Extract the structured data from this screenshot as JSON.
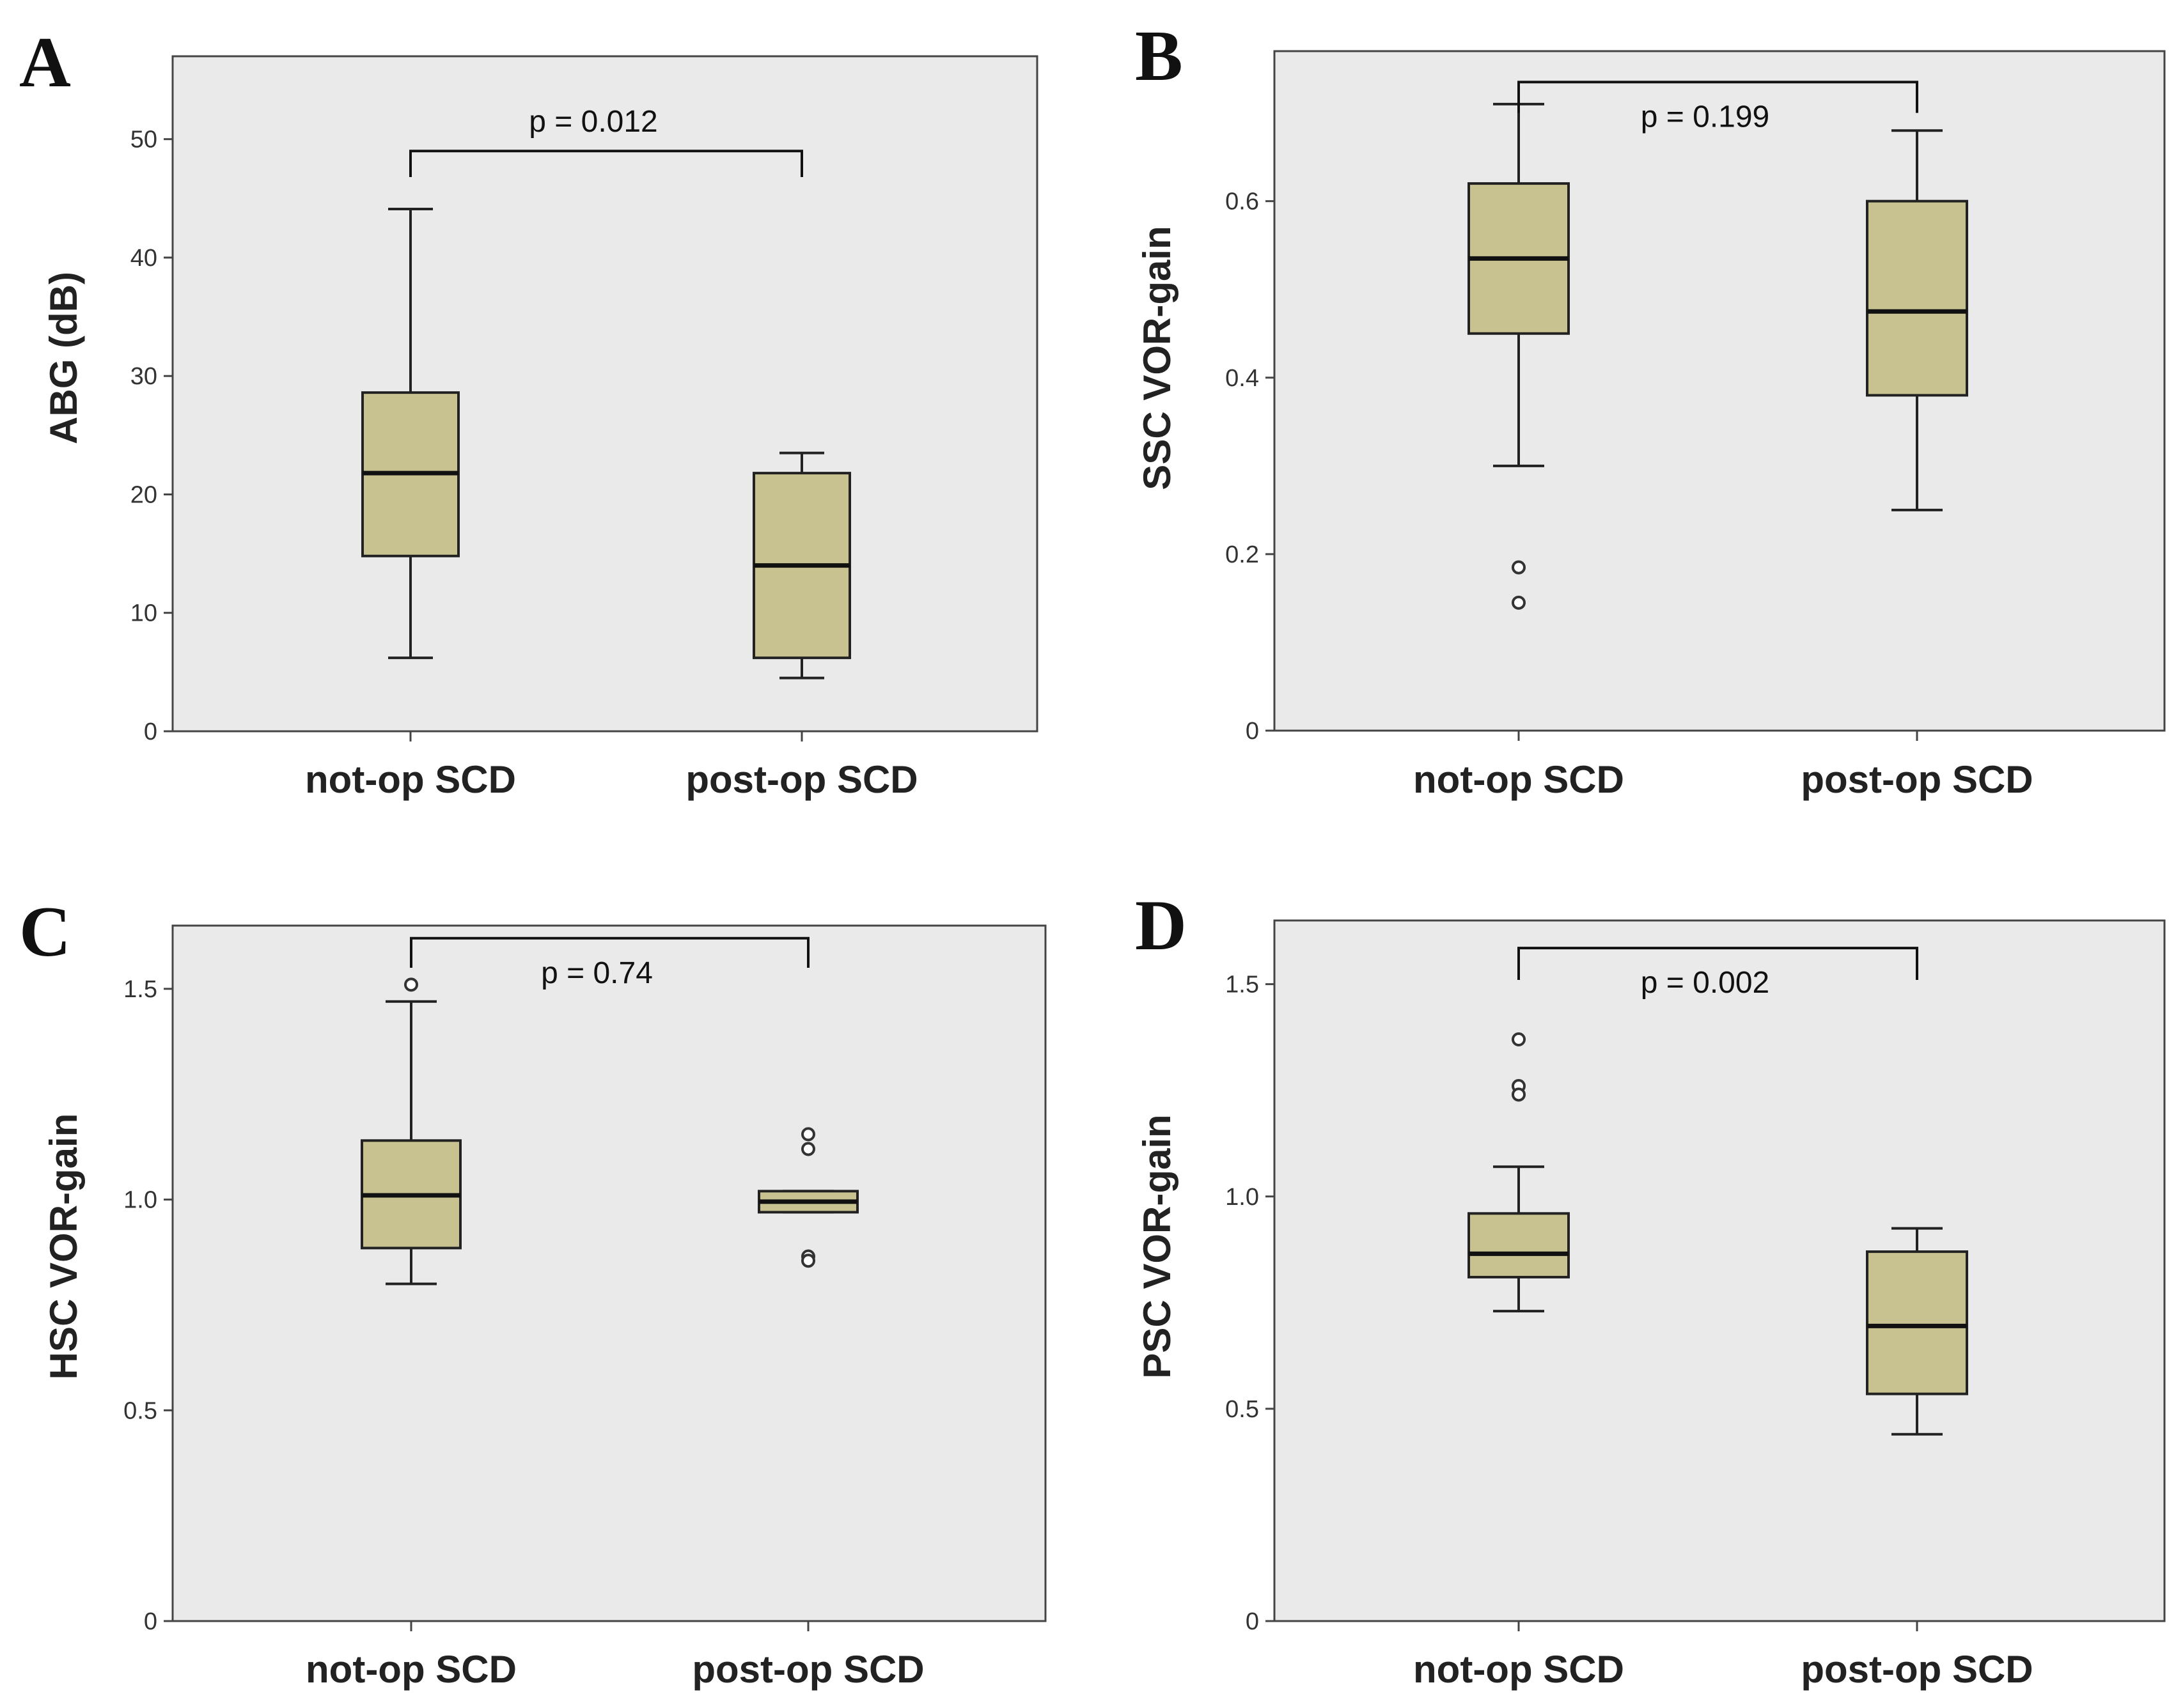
{
  "colors": {
    "plot_bg": "#eaeaea",
    "box_fill": "#c8c290",
    "frame": "#444444",
    "median": "#111111"
  },
  "chart_data": [
    {
      "type": "box",
      "panel": "A",
      "ylabel": "ABG (dB)",
      "ylim": [
        0,
        57
      ],
      "yticks": [
        0,
        10,
        20,
        30,
        40,
        50
      ],
      "categories": [
        "not-op SCD",
        "post-op SCD"
      ],
      "boxes": [
        {
          "whisker_low": 6.2,
          "q1": 14.8,
          "median": 21.8,
          "q3": 28.6,
          "whisker_high": 44.1,
          "outliers": []
        },
        {
          "whisker_low": 4.5,
          "q1": 6.2,
          "median": 14.0,
          "q3": 21.8,
          "whisker_high": 23.5,
          "outliers": []
        }
      ],
      "annotation": {
        "text": "p = 0.012",
        "bracket_y": 49.0,
        "tick_end": 46.8,
        "direction": "down"
      }
    },
    {
      "type": "box",
      "panel": "B",
      "ylabel": "SSC VOR-gain",
      "ylim": [
        0,
        0.77
      ],
      "yticks": [
        0,
        0.2,
        0.4,
        0.6
      ],
      "ytick_labels": [
        "0",
        "0.2",
        "0.4",
        "0.6"
      ],
      "categories": [
        "not-op SCD",
        "post-op SCD"
      ],
      "boxes": [
        {
          "whisker_low": 0.3,
          "q1": 0.45,
          "median": 0.535,
          "q3": 0.62,
          "whisker_high": 0.71,
          "outliers": [
            0.185,
            0.145
          ]
        },
        {
          "whisker_low": 0.25,
          "q1": 0.38,
          "median": 0.475,
          "q3": 0.6,
          "whisker_high": 0.68,
          "outliers": []
        }
      ],
      "annotation": {
        "text": "p = 0.199",
        "bracket_y": 0.735,
        "tick_end": 0.7,
        "direction": "down"
      }
    },
    {
      "type": "box",
      "panel": "C",
      "ylabel": "HSC VOR-gain",
      "ylim": [
        0,
        1.65
      ],
      "yticks": [
        0,
        0.5,
        1.0,
        1.5
      ],
      "ytick_labels": [
        "0",
        "0.5",
        "1.0",
        "1.5"
      ],
      "categories": [
        "not-op SCD",
        "post-op SCD"
      ],
      "boxes": [
        {
          "whisker_low": 0.8,
          "q1": 0.885,
          "median": 1.01,
          "q3": 1.14,
          "whisker_high": 1.47,
          "outliers": [
            1.51
          ]
        },
        {
          "whisker_low": 0.97,
          "q1": 0.97,
          "median": 0.995,
          "q3": 1.02,
          "whisker_high": 1.02,
          "outliers": [
            1.155,
            1.12,
            0.865,
            0.855
          ]
        }
      ],
      "annotation": {
        "text": "p = 0.74",
        "bracket_y": 1.62,
        "tick_end": 1.55,
        "direction": "down"
      }
    },
    {
      "type": "box",
      "panel": "D",
      "ylabel": "PSC VOR-gain",
      "ylim": [
        0,
        1.65
      ],
      "yticks": [
        0,
        0.5,
        1.0,
        1.5
      ],
      "ytick_labels": [
        "0",
        "0.5",
        "1.0",
        "1.5"
      ],
      "categories": [
        "not-op SCD",
        "post-op SCD"
      ],
      "boxes": [
        {
          "whisker_low": 0.73,
          "q1": 0.81,
          "median": 0.865,
          "q3": 0.96,
          "whisker_high": 1.07,
          "outliers": [
            1.37,
            1.26,
            1.24
          ]
        },
        {
          "whisker_low": 0.44,
          "q1": 0.535,
          "median": 0.695,
          "q3": 0.87,
          "whisker_high": 0.925,
          "outliers": []
        }
      ],
      "annotation": {
        "text": "p = 0.002",
        "bracket_y": 1.585,
        "tick_end": 1.51,
        "direction": "down"
      }
    }
  ]
}
